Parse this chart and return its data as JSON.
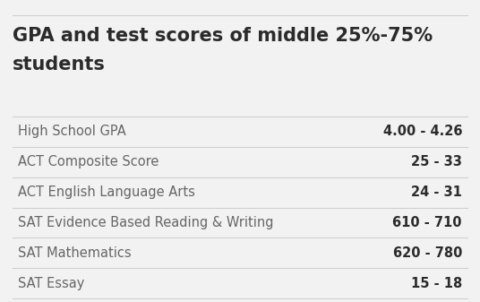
{
  "title_line1": "GPA and test scores of middle 25%-75%",
  "title_line2": "students",
  "title_fontsize": 15,
  "title_color": "#2b2b2b",
  "background_color": "#f2f2f2",
  "rows": [
    {
      "label": "High School GPA",
      "value": "4.00 - 4.26"
    },
    {
      "label": "ACT Composite Score",
      "value": "25 - 33"
    },
    {
      "label": "ACT English Language Arts",
      "value": "24 - 31"
    },
    {
      "label": "SAT Evidence Based Reading & Writing",
      "value": "610 - 710"
    },
    {
      "label": "SAT Mathematics",
      "value": "620 - 780"
    },
    {
      "label": "SAT Essay",
      "value": "15 - 18"
    }
  ],
  "label_color": "#666666",
  "value_color": "#2b2b2b",
  "label_fontsize": 10.5,
  "value_fontsize": 10.5,
  "divider_color": "#d0d0d0",
  "divider_linewidth": 0.8,
  "fig_width": 5.36,
  "fig_height": 3.37,
  "dpi": 100
}
